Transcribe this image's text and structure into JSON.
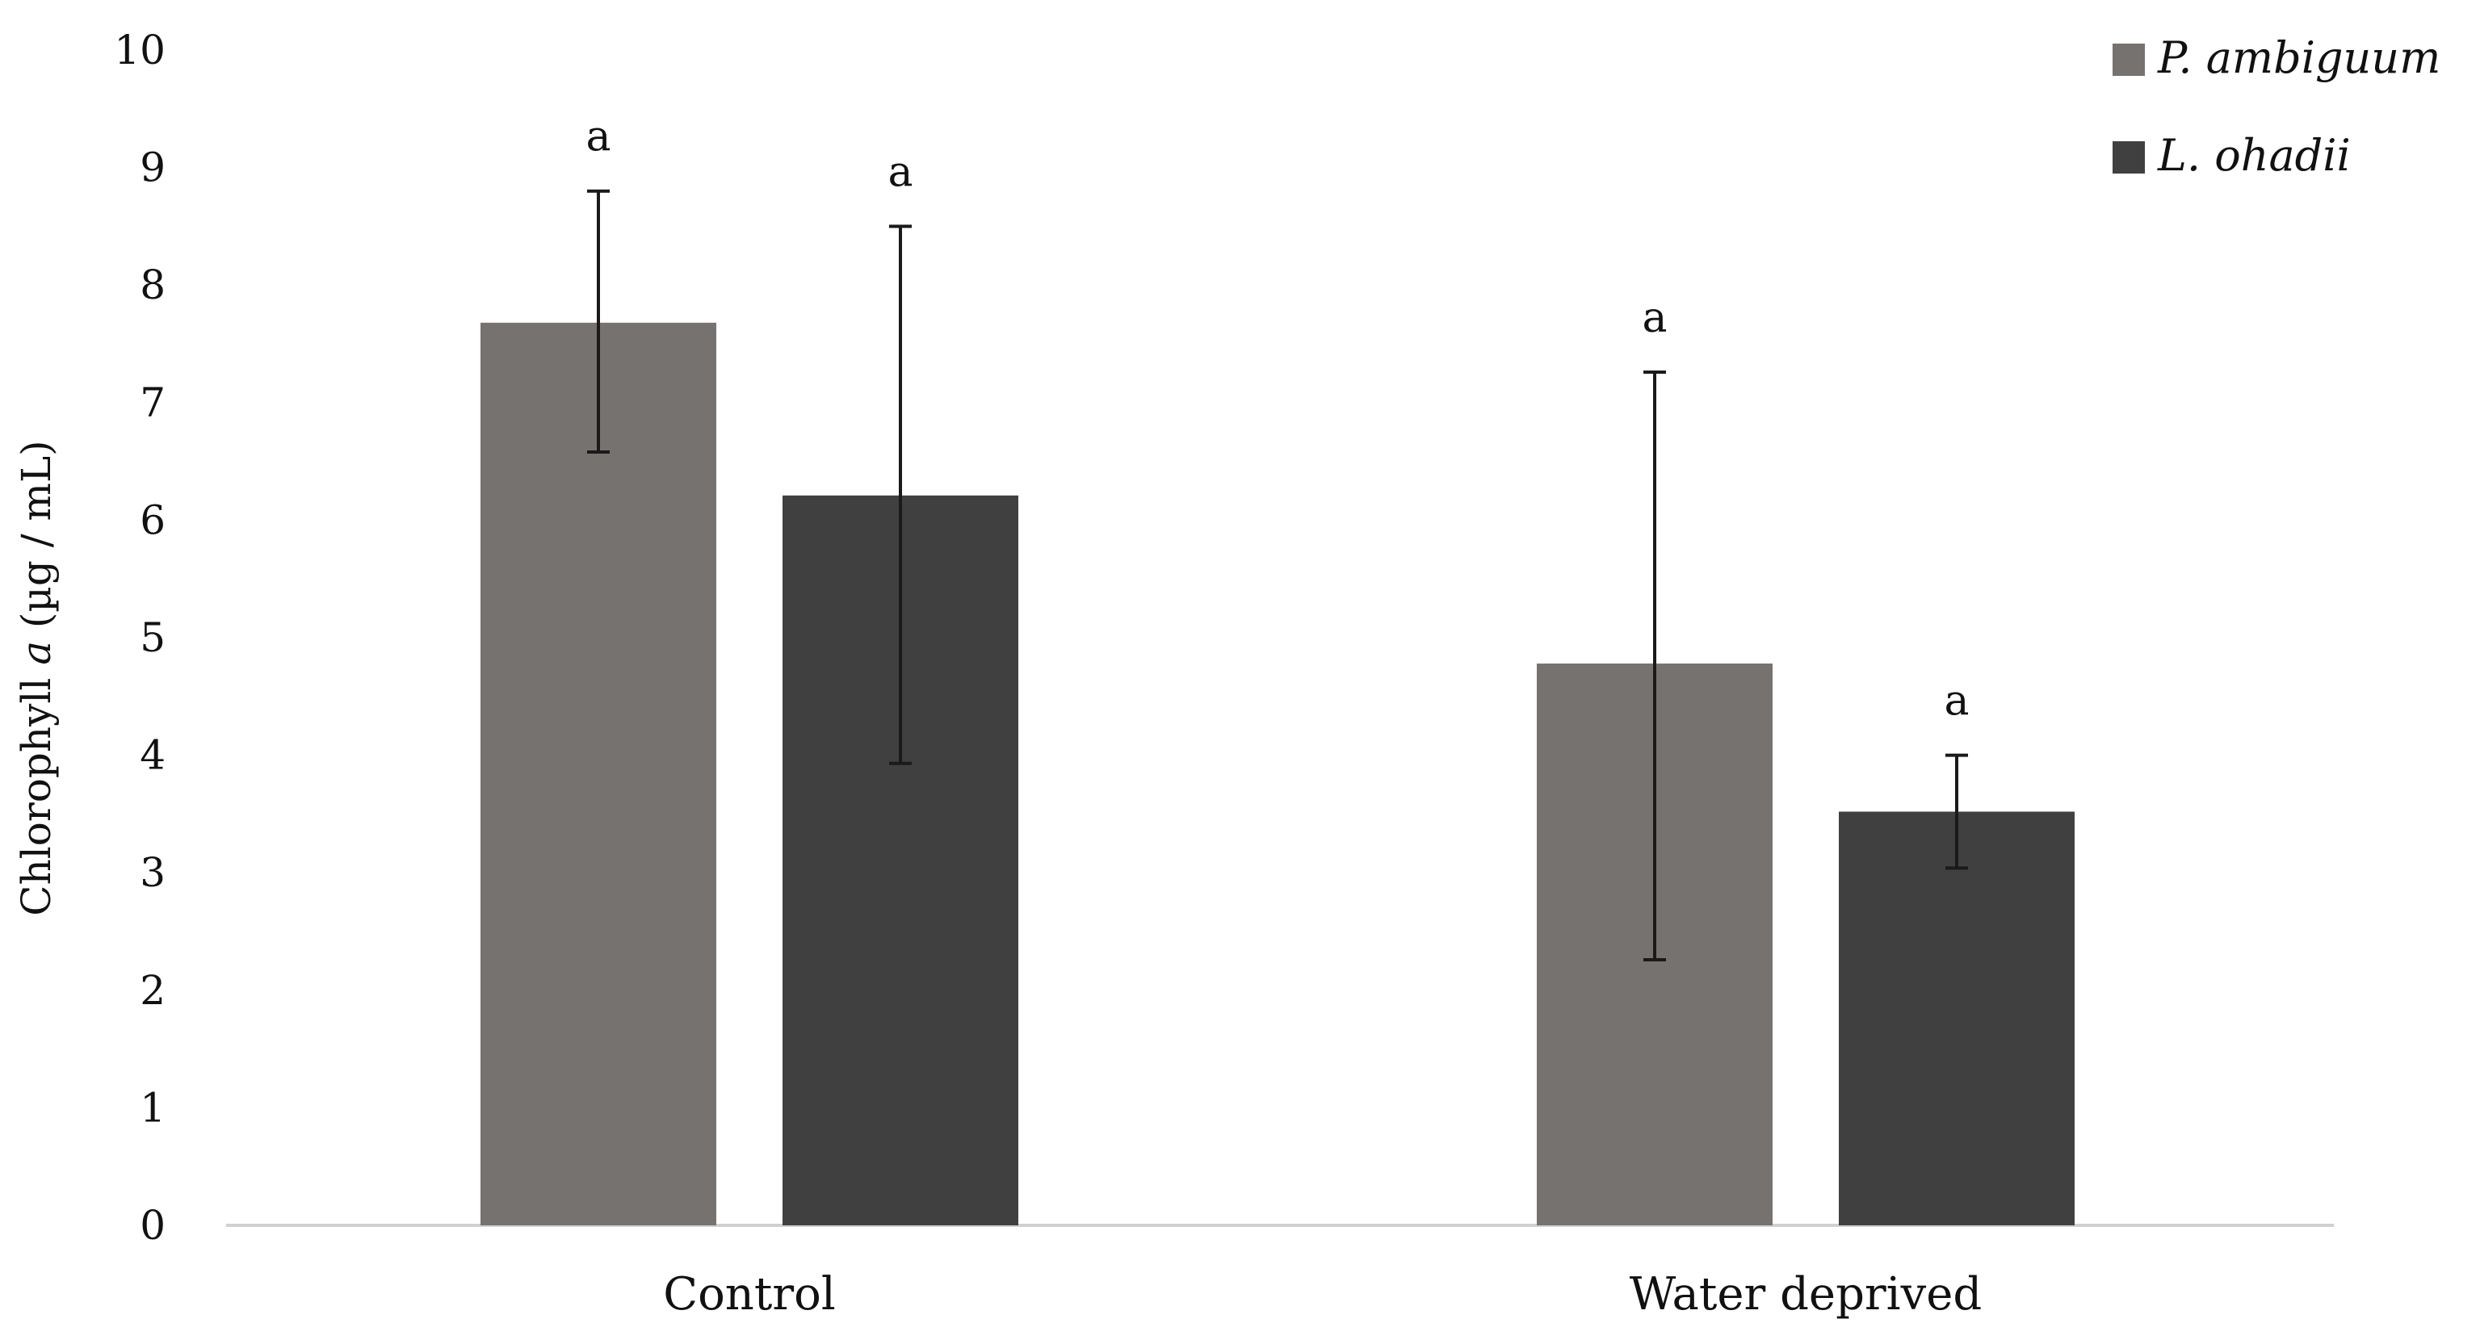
{
  "chart_data": {
    "type": "bar",
    "title": "",
    "xlabel": "",
    "ylabel_prefix": "Chlorophyll ",
    "ylabel_italic": "a",
    "ylabel_suffix": " (µg / mL)",
    "ylim": [
      0,
      10
    ],
    "yticks": [
      0,
      1,
      2,
      3,
      4,
      5,
      6,
      7,
      8,
      9,
      10
    ],
    "categories": [
      "Control",
      "Water deprived"
    ],
    "legend_position": "top-right",
    "series": [
      {
        "name": "P. ambiguum",
        "color": "#767270",
        "values": [
          7.68,
          4.78
        ],
        "error_low": [
          6.58,
          2.26
        ],
        "error_high": [
          8.8,
          7.26
        ],
        "significance": [
          "a",
          "a"
        ]
      },
      {
        "name": "L. ohadii",
        "color": "#404040",
        "values": [
          6.21,
          3.52
        ],
        "error_low": [
          3.93,
          3.04
        ],
        "error_high": [
          8.5,
          4.0
        ],
        "significance": [
          "a",
          "a"
        ]
      }
    ]
  }
}
